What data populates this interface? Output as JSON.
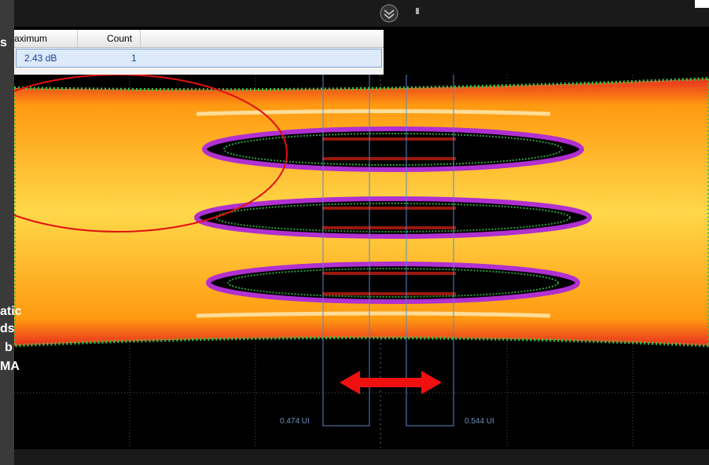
{
  "table": {
    "headers": [
      "aximum",
      "Count"
    ],
    "rows": [
      [
        "2.43 dB",
        "1"
      ]
    ]
  },
  "markers": {
    "left_label": "0.474 UI",
    "right_label": "0.544 UI"
  },
  "side_panel": {
    "fragments": [
      "s",
      "atic",
      "ds",
      "b",
      "MA"
    ]
  }
}
